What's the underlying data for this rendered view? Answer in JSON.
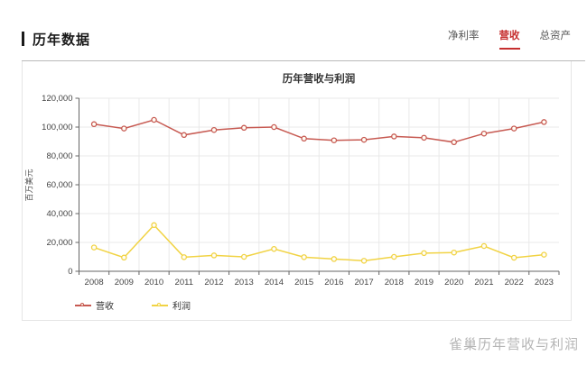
{
  "page": {
    "section_title": "历年数据",
    "watermark": "雀巢历年营收与利润"
  },
  "tabs": [
    {
      "label": "净利率",
      "active": false
    },
    {
      "label": "营收",
      "active": true
    },
    {
      "label": "总资产",
      "active": false
    }
  ],
  "colors": {
    "active_tab": "#c62f2f",
    "axis": "#666666",
    "grid": "#e9e9e9",
    "tick_text": "#444444",
    "watermark": "#b5b5b5"
  },
  "chart_data": {
    "type": "line",
    "title": "历年营收与利润",
    "xlabel": "",
    "ylabel": "百万美元",
    "ylim": [
      0,
      120000
    ],
    "ytick_step": 20000,
    "grid": true,
    "legend_position": "bottom-left",
    "categories": [
      "2008",
      "2009",
      "2010",
      "2011",
      "2012",
      "2013",
      "2014",
      "2015",
      "2016",
      "2017",
      "2018",
      "2019",
      "2020",
      "2021",
      "2022",
      "2023"
    ],
    "series": [
      {
        "name": "营收",
        "id": "revenue",
        "color": "#c75a52",
        "values": [
          102000,
          99000,
          105000,
          94500,
          98000,
          99500,
          100000,
          92000,
          90800,
          91200,
          93500,
          92600,
          89500,
          95500,
          99000,
          103500
        ]
      },
      {
        "name": "利润",
        "id": "profit",
        "color": "#f1d344",
        "values": [
          16500,
          9500,
          32000,
          9800,
          11000,
          10000,
          15500,
          9800,
          8500,
          7300,
          10000,
          12600,
          13000,
          17500,
          9400,
          11500
        ]
      }
    ]
  }
}
